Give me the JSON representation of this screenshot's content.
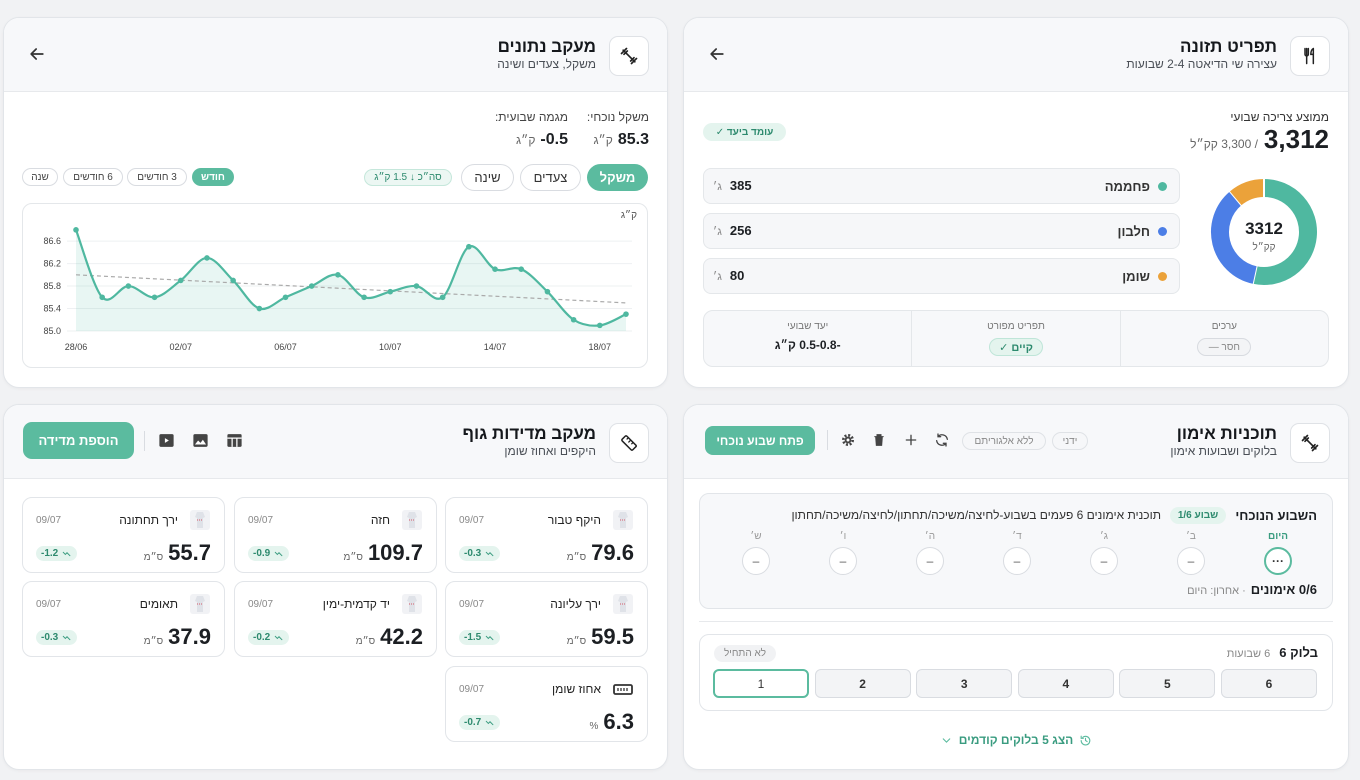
{
  "nutrition": {
    "title": "תפריט תזונה",
    "subtitle": "עצירה שי הדיאטה 2-4 שבועות",
    "status": "עומד ביעד ✓",
    "avg_label": "ממוצע צריכה שבועי",
    "avg_value": "3,312",
    "avg_target": "/ 3,300 קק״ל",
    "donut_total": "3312",
    "donut_unit": "קק״ל",
    "macros": [
      {
        "name": "פחממה",
        "value": 385,
        "unit": "ג׳",
        "color": "#4fb8a0"
      },
      {
        "name": "חלבון",
        "value": 256,
        "unit": "ג׳",
        "color": "#4c7ee6"
      },
      {
        "name": "שומן",
        "value": 80,
        "unit": "ג׳",
        "color": "#eba23a"
      }
    ],
    "stats": [
      {
        "label": "ערכים",
        "value": "חסר —"
      },
      {
        "label": "תפריט מפורט",
        "value": "קיים ✓"
      },
      {
        "label": "יעד שבועי",
        "value": "-0.5-0.8 ק״ג"
      }
    ]
  },
  "tracking": {
    "title": "מעקב נתונים",
    "subtitle": "משקל, צעדים ושינה",
    "current_label": "משקל נוכחי:",
    "current_value": "85.3",
    "current_unit": "ק״ג",
    "trend_label": "מגמה שבועית:",
    "trend_value": "-0.5",
    "trend_unit": "ק״ג",
    "tabs": [
      "משקל",
      "צעדים",
      "שינה"
    ],
    "total_badge": "סה״כ ↓ 1.5 ק״ג",
    "ranges": [
      "חודש",
      "3 חודשים",
      "6 חודשים",
      "שנה"
    ]
  },
  "chart_data": {
    "type": "line",
    "y_unit": "ק״ג",
    "categories": [
      "28/06",
      null,
      null,
      null,
      "02/07",
      null,
      null,
      null,
      "06/07",
      null,
      null,
      null,
      "10/07",
      null,
      null,
      null,
      "14/07",
      null,
      null,
      null,
      "18/07",
      null
    ],
    "values": [
      86.8,
      85.6,
      85.8,
      85.6,
      85.9,
      86.3,
      85.9,
      85.4,
      85.6,
      85.8,
      86.0,
      85.6,
      85.7,
      85.8,
      85.6,
      86.5,
      86.1,
      86.1,
      85.7,
      85.2,
      85.1,
      85.3
    ],
    "color": "#4fb8a0",
    "trend": [
      86.0,
      85.5
    ],
    "ylim": [
      85,
      87.1
    ],
    "yticks": [
      {
        "value": 85,
        "label": "85.0"
      },
      85.4,
      85.8,
      86.2,
      86.6
    ],
    "grid": true
  },
  "measurements": {
    "title": "מעקב מדידות גוף",
    "subtitle": "היקפים ואחוז שומן",
    "add_button": "הוספת מדידה",
    "items": [
      {
        "name": "היקף טבור",
        "date": "09/07",
        "value": "79.6",
        "unit": "ס״מ",
        "change": "-0.3"
      },
      {
        "name": "חזה",
        "date": "09/07",
        "value": "109.7",
        "unit": "ס״מ",
        "change": "-0.9"
      },
      {
        "name": "ירך תחתונה",
        "date": "09/07",
        "value": "55.7",
        "unit": "ס״מ",
        "change": "-1.2"
      },
      {
        "name": "ירך עליונה",
        "date": "09/07",
        "value": "59.5",
        "unit": "ס״מ",
        "change": "-1.5"
      },
      {
        "name": "יד קדמית-ימין",
        "date": "09/07",
        "value": "42.2",
        "unit": "ס״מ",
        "change": "-0.2"
      },
      {
        "name": "תאומים",
        "date": "09/07",
        "value": "37.9",
        "unit": "ס״מ",
        "change": "-0.3"
      },
      {
        "name": "אחוז שומן",
        "date": "09/07",
        "value": "6.3",
        "unit": "%",
        "change": "-0.7"
      }
    ]
  },
  "training": {
    "title": "תוכניות אימון",
    "subtitle": "בלוקים ושבועות אימון",
    "chips": [
      "ידני",
      "ללא אלגוריתם"
    ],
    "open_button": "פתח שבוע נוכחי",
    "current_title": "השבוע הנוכחי",
    "week_chip": "שבוע 1/6",
    "plan": "תוכנית אימונים 6 פעמים בשבוע-לחיצה/משיכה/תחתון/לחיצה/משיכה/תחתון",
    "days": [
      {
        "label": "היום",
        "mark": "···"
      },
      {
        "label": "ב׳",
        "mark": "–"
      },
      {
        "label": "ג׳",
        "mark": "–"
      },
      {
        "label": "ד׳",
        "mark": "–"
      },
      {
        "label": "ה׳",
        "mark": "–"
      },
      {
        "label": "ו׳",
        "mark": "–"
      },
      {
        "label": "ש׳",
        "mark": "–"
      }
    ],
    "progress": "0/6 אימונים",
    "last": "· אחרון: היום",
    "block_title": "בלוק 6",
    "block_weeks": "6 שבועות",
    "block_status": "לא התחיל",
    "weeks": [
      "1",
      "2",
      "3",
      "4",
      "5",
      "6"
    ],
    "show_prev": "הצג 5 בלוקים קודמים"
  }
}
